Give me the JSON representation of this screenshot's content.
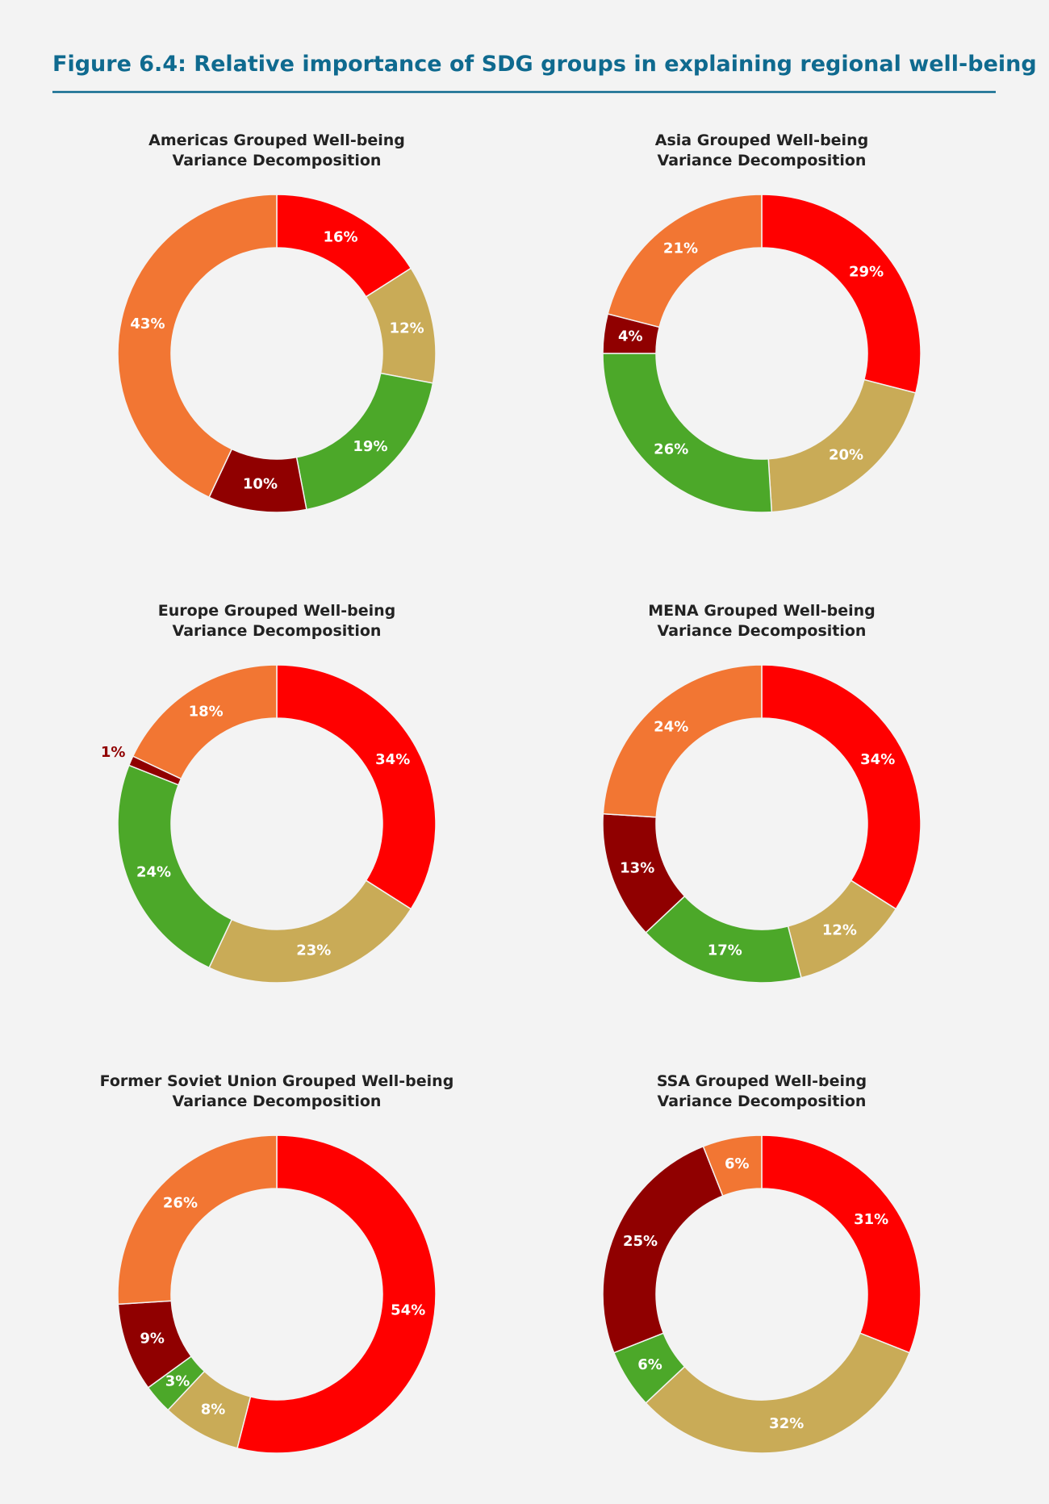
{
  "figure_title": "Figure 6.4: Relative importance of SDG groups in explaining regional well-being",
  "chart_data": [
    {
      "type": "pie",
      "title": [
        "Americas Grouped Well-being",
        "Variance Decomposition"
      ],
      "values": [
        16,
        12,
        19,
        10,
        43
      ],
      "value_labels": [
        "16%",
        "12%",
        "19%",
        "10%",
        "43%"
      ],
      "colors": [
        "#ff0000",
        "#c9ab57",
        "#4ca829",
        "#900000",
        "#f27633"
      ]
    },
    {
      "type": "pie",
      "title": [
        "Asia Grouped Well-being",
        "Variance Decomposition"
      ],
      "values": [
        29,
        20,
        26,
        4,
        21
      ],
      "value_labels": [
        "29%",
        "20%",
        "26%",
        "4%",
        "21%"
      ],
      "colors": [
        "#ff0000",
        "#c9ab57",
        "#4ca829",
        "#900000",
        "#f27633"
      ]
    },
    {
      "type": "pie",
      "title": [
        "Europe Grouped Well-being",
        "Variance Decomposition"
      ],
      "values": [
        34,
        23,
        24,
        1,
        18
      ],
      "value_labels": [
        "34%",
        "23%",
        "24%",
        "1%",
        "18%"
      ],
      "colors": [
        "#ff0000",
        "#c9ab57",
        "#4ca829",
        "#900000",
        "#f27633"
      ]
    },
    {
      "type": "pie",
      "title": [
        "MENA Grouped Well-being",
        "Variance Decomposition"
      ],
      "values": [
        34,
        12,
        17,
        13,
        24
      ],
      "value_labels": [
        "34%",
        "12%",
        "17%",
        "13%",
        "24%"
      ],
      "colors": [
        "#ff0000",
        "#c9ab57",
        "#4ca829",
        "#900000",
        "#f27633"
      ]
    },
    {
      "type": "pie",
      "title": [
        "Former Soviet Union Grouped Well-being",
        "Variance Decomposition"
      ],
      "values": [
        54,
        8,
        3,
        9,
        26
      ],
      "value_labels": [
        "54%",
        "8%",
        "3%",
        "9%",
        "26%"
      ],
      "colors": [
        "#ff0000",
        "#c9ab57",
        "#4ca829",
        "#900000",
        "#f27633"
      ]
    },
    {
      "type": "pie",
      "title": [
        "SSA Grouped Well-being",
        "Variance Decomposition"
      ],
      "values": [
        31,
        32,
        6,
        25,
        6
      ],
      "value_labels": [
        "31%",
        "32%",
        "6%",
        "25%",
        "6%"
      ],
      "colors": [
        "#ff0000",
        "#c9ab57",
        "#4ca829",
        "#900000",
        "#f27633"
      ]
    }
  ]
}
